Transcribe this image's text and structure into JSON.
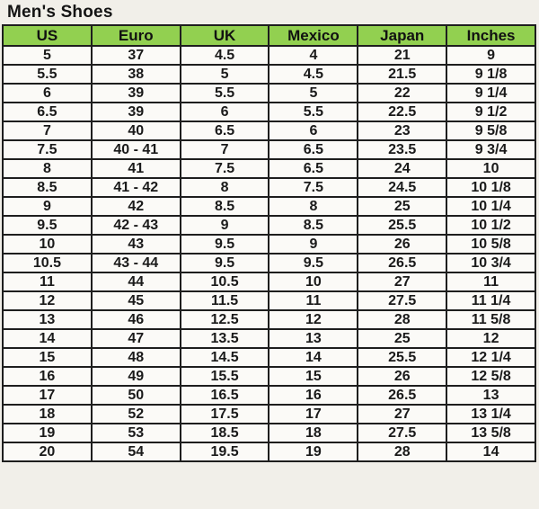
{
  "page": {
    "title": "Men's Shoes"
  },
  "colors": {
    "header_bg": "#92d050",
    "border": "#1e1e1e",
    "cell_bg": "#fbfaf7",
    "page_bg": "#f1efe9",
    "text": "#1a1a1a"
  },
  "chart_data": {
    "type": "table",
    "title": "Men's Shoes",
    "columns": [
      "US",
      "Euro",
      "UK",
      "Mexico",
      "Japan",
      "Inches"
    ],
    "rows": [
      [
        "5",
        "37",
        "4.5",
        "4",
        "21",
        "9"
      ],
      [
        "5.5",
        "38",
        "5",
        "4.5",
        "21.5",
        "9 1/8"
      ],
      [
        "6",
        "39",
        "5.5",
        "5",
        "22",
        "9 1/4"
      ],
      [
        "6.5",
        "39",
        "6",
        "5.5",
        "22.5",
        "9 1/2"
      ],
      [
        "7",
        "40",
        "6.5",
        "6",
        "23",
        "9 5/8"
      ],
      [
        "7.5",
        "40 - 41",
        "7",
        "6.5",
        "23.5",
        "9 3/4"
      ],
      [
        "8",
        "41",
        "7.5",
        "6.5",
        "24",
        "10"
      ],
      [
        "8.5",
        "41 - 42",
        "8",
        "7.5",
        "24.5",
        "10 1/8"
      ],
      [
        "9",
        "42",
        "8.5",
        "8",
        "25",
        "10 1/4"
      ],
      [
        "9.5",
        "42 - 43",
        "9",
        "8.5",
        "25.5",
        "10 1/2"
      ],
      [
        "10",
        "43",
        "9.5",
        "9",
        "26",
        "10 5/8"
      ],
      [
        "10.5",
        "43 - 44",
        "9.5",
        "9.5",
        "26.5",
        "10 3/4"
      ],
      [
        "11",
        "44",
        "10.5",
        "10",
        "27",
        "11"
      ],
      [
        "12",
        "45",
        "11.5",
        "11",
        "27.5",
        "11 1/4"
      ],
      [
        "13",
        "46",
        "12.5",
        "12",
        "28",
        "11 5/8"
      ],
      [
        "14",
        "47",
        "13.5",
        "13",
        "25",
        "12"
      ],
      [
        "15",
        "48",
        "14.5",
        "14",
        "25.5",
        "12 1/4"
      ],
      [
        "16",
        "49",
        "15.5",
        "15",
        "26",
        "12 5/8"
      ],
      [
        "17",
        "50",
        "16.5",
        "16",
        "26.5",
        "13"
      ],
      [
        "18",
        "52",
        "17.5",
        "17",
        "27",
        "13 1/4"
      ],
      [
        "19",
        "53",
        "18.5",
        "18",
        "27.5",
        "13 5/8"
      ],
      [
        "20",
        "54",
        "19.5",
        "19",
        "28",
        "14"
      ]
    ]
  }
}
